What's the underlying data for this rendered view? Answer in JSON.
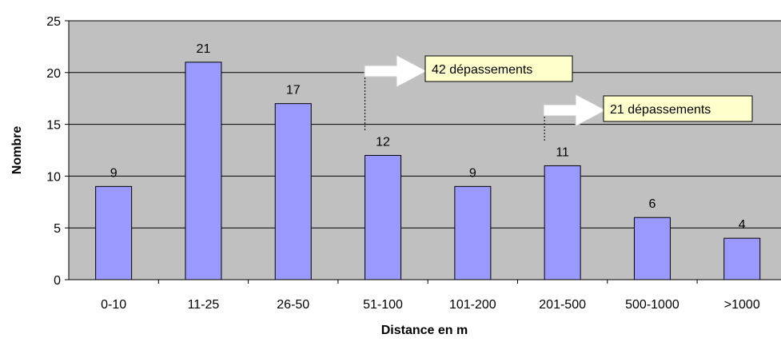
{
  "chart_data": {
    "type": "bar",
    "categories": [
      "0-10",
      "11-25",
      "26-50",
      "51-100",
      "101-200",
      "201-500",
      "500-1000",
      ">1000"
    ],
    "values": [
      9,
      21,
      17,
      12,
      9,
      11,
      6,
      4
    ],
    "xlabel": "Distance en m",
    "ylabel": "Nombre",
    "ylim": [
      0,
      25
    ],
    "yticks": [
      0,
      5,
      10,
      15,
      20,
      25
    ],
    "grid": true,
    "colors": {
      "bar": "#9999ff",
      "plot_background": "#c0c0c0",
      "annotation_box": "#ffffcc",
      "arrow": "#ffffff"
    },
    "annotations": [
      {
        "text": "42 dépassements",
        "from_category": "51-100"
      },
      {
        "text": "21 dépassements",
        "from_category": "201-500"
      }
    ]
  }
}
